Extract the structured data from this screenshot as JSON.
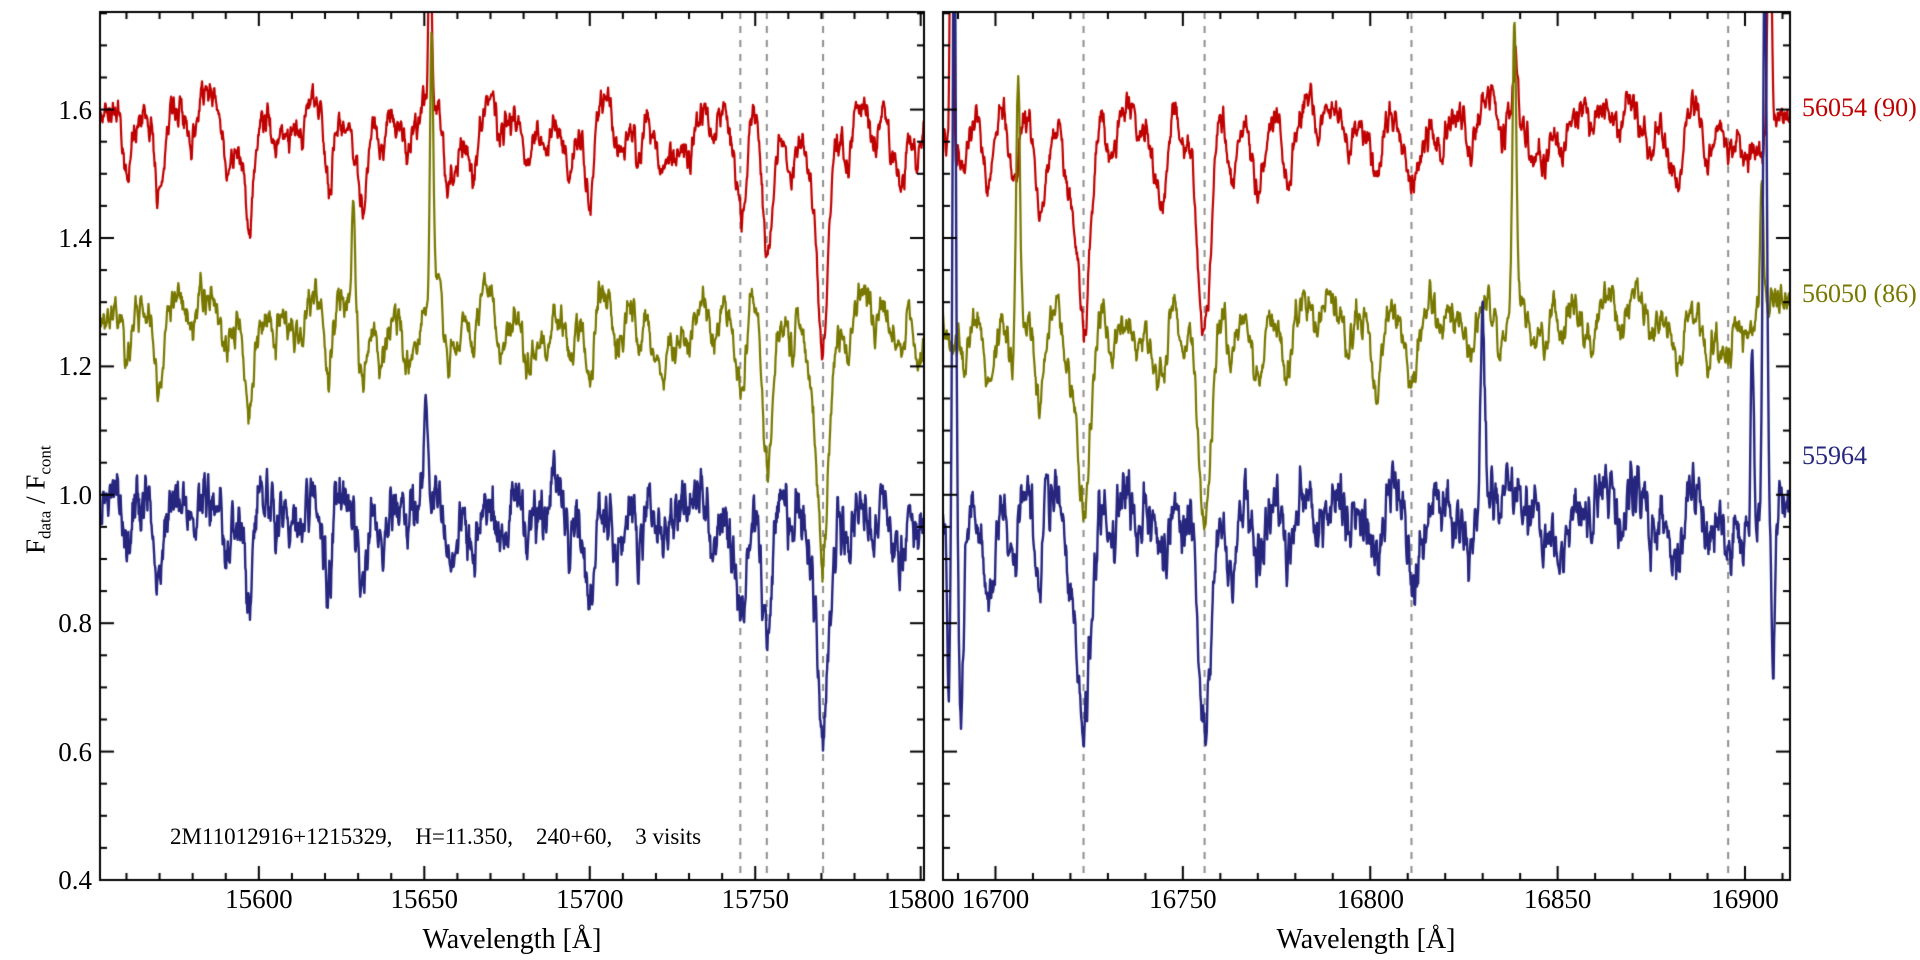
{
  "figure": {
    "background": "#ffffff",
    "annotation": "2M11012916+1215329,    H=11.350,    240+60,    3 visits",
    "ylabel_parts": {
      "f1": "F",
      "sub1": "data",
      "mid": " / F",
      "sub2": "cont"
    }
  },
  "chart_data": {
    "type": "line",
    "title": "",
    "xlabel": "Wavelength [Å]",
    "ylabel": "F_data / F_cont",
    "ylim": [
      0.4,
      1.752
    ],
    "yticks": [
      0.4,
      0.6,
      0.8,
      1.0,
      1.2,
      1.4,
      1.6
    ],
    "ytick_labels": [
      "0.4",
      "0.6",
      "0.8",
      "1.0",
      "1.2",
      "1.4",
      "1.6"
    ],
    "y_minor_step": 0.05,
    "x_minor_step": 10,
    "grid": false,
    "legend_position": "right-outside",
    "axis_color": "#000000",
    "dashed_line_color": "#8f8f8f",
    "panels": [
      {
        "xlim": [
          15552,
          15801
        ],
        "xticks": [
          15600,
          15650,
          15700,
          15750,
          15800
        ],
        "xtick_labels": [
          "15600",
          "15650",
          "15700",
          "15750",
          "15800"
        ],
        "xlabel": "Wavelength [Å]",
        "dashed_lines_x": [
          15745.5,
          15753.5,
          15770.5
        ],
        "seed": 7,
        "absorption_lines": [
          [
            15560,
            0.07,
            1.0
          ],
          [
            15570,
            0.1,
            1.2
          ],
          [
            15580,
            0.06,
            1.0
          ],
          [
            15590,
            0.05,
            0.9
          ],
          [
            15597,
            0.16,
            1.2
          ],
          [
            15605,
            0.06,
            1.0
          ],
          [
            15613,
            0.05,
            0.9
          ],
          [
            15621,
            0.1,
            1.1
          ],
          [
            15631.5,
            0.12,
            1.4
          ],
          [
            15637,
            0.08,
            1.1
          ],
          [
            15645,
            0.06,
            1.0
          ],
          [
            15657,
            0.07,
            1.0
          ],
          [
            15665,
            0.09,
            1.2
          ],
          [
            15673,
            0.05,
            0.9
          ],
          [
            15681,
            0.05,
            0.9
          ],
          [
            15687,
            0.06,
            1.0
          ],
          [
            15694,
            0.05,
            0.9
          ],
          [
            15700,
            0.14,
            1.3
          ],
          [
            15708,
            0.05,
            0.9
          ],
          [
            15715,
            0.06,
            1.0
          ],
          [
            15722,
            0.08,
            1.1
          ],
          [
            15730,
            0.05,
            0.9
          ],
          [
            15737,
            0.05,
            0.9
          ],
          [
            15745.5,
            0.15,
            1.3
          ],
          [
            15753.5,
            0.22,
            1.5
          ],
          [
            15761,
            0.07,
            1.1
          ],
          [
            15770.5,
            0.34,
            1.7
          ],
          [
            15778,
            0.08,
            1.2
          ],
          [
            15786,
            0.06,
            1.0
          ],
          [
            15794,
            0.05,
            1.0
          ]
        ]
      },
      {
        "xlim": [
          16686,
          16912
        ],
        "xticks": [
          16700,
          16750,
          16800,
          16850,
          16900
        ],
        "xtick_labels": [
          "16700",
          "16750",
          "16800",
          "16850",
          "16900"
        ],
        "xlabel": "Wavelength [Å]",
        "dashed_lines_x": [
          16723.5,
          16755.8,
          16811.0,
          16895.5
        ],
        "seed": 13,
        "absorption_lines": [
          [
            16692,
            0.06,
            1.0
          ],
          [
            16698,
            0.06,
            1.0
          ],
          [
            16705,
            0.05,
            0.9
          ],
          [
            16712,
            0.07,
            1.0
          ],
          [
            16719,
            0.08,
            1.1
          ],
          [
            16723.5,
            0.3,
            1.7
          ],
          [
            16731,
            0.08,
            1.1
          ],
          [
            16738,
            0.05,
            0.9
          ],
          [
            16745,
            0.06,
            1.0
          ],
          [
            16750,
            0.07,
            1.0
          ],
          [
            16755.8,
            0.36,
            1.8
          ],
          [
            16763,
            0.1,
            1.2
          ],
          [
            16770,
            0.12,
            1.3
          ],
          [
            16778,
            0.06,
            1.0
          ],
          [
            16786,
            0.05,
            0.9
          ],
          [
            16794,
            0.05,
            0.9
          ],
          [
            16802,
            0.06,
            1.0
          ],
          [
            16811,
            0.06,
            1.0
          ],
          [
            16819,
            0.05,
            0.9
          ],
          [
            16827,
            0.06,
            1.0
          ],
          [
            16835,
            0.05,
            0.9
          ],
          [
            16843,
            0.05,
            0.9
          ],
          [
            16851,
            0.06,
            1.0
          ],
          [
            16859,
            0.06,
            1.0
          ],
          [
            16867,
            0.05,
            0.9
          ],
          [
            16875,
            0.05,
            0.9
          ],
          [
            16883,
            0.05,
            0.9
          ],
          [
            16890,
            0.05,
            0.9
          ],
          [
            16896,
            0.05,
            0.9
          ]
        ]
      }
    ],
    "series": [
      {
        "label": "56054 (90)",
        "mjd": "56054",
        "color": "#c00000",
        "offset": 1.6,
        "label_y": 1.602,
        "noise": 0.035,
        "lw": 2.2,
        "seed": 101,
        "spikes": [
          [
            0,
            15651.8,
            0.3,
            0.45
          ],
          [
            1,
            16688.3,
            0.6,
            0.4
          ],
          [
            1,
            16838.8,
            0.1,
            0.5
          ],
          [
            1,
            16906.5,
            0.5,
            0.45
          ]
        ]
      },
      {
        "label": "56050 (86)",
        "mjd": "56050",
        "color": "#787800",
        "offset": 1.3,
        "label_y": 1.313,
        "noise": 0.038,
        "lw": 2.2,
        "seed": 202,
        "spikes": [
          [
            0,
            15628.5,
            0.17,
            0.45
          ],
          [
            0,
            15652.2,
            0.4,
            0.5
          ],
          [
            1,
            16706.0,
            0.42,
            0.55
          ],
          [
            1,
            16838.5,
            0.45,
            0.5
          ],
          [
            1,
            16904.5,
            0.2,
            0.5
          ]
        ]
      },
      {
        "label": "55964",
        "mjd": "55964",
        "color": "#26267f",
        "offset": 1.0,
        "label_y": 1.06,
        "noise": 0.062,
        "lw": 2.4,
        "seed": 303,
        "spikes": [
          [
            0,
            15650.5,
            0.13,
            0.5
          ],
          [
            1,
            16687.5,
            -0.28,
            0.5
          ],
          [
            1,
            16689.0,
            1.0,
            0.45
          ],
          [
            1,
            16690.8,
            -0.3,
            0.6
          ],
          [
            1,
            16713.5,
            0.1,
            0.5
          ],
          [
            1,
            16830.0,
            0.28,
            0.55
          ],
          [
            1,
            16902.0,
            0.3,
            0.4
          ],
          [
            1,
            16905.3,
            0.9,
            0.5
          ],
          [
            1,
            16907.5,
            -0.25,
            0.5
          ]
        ]
      }
    ]
  }
}
